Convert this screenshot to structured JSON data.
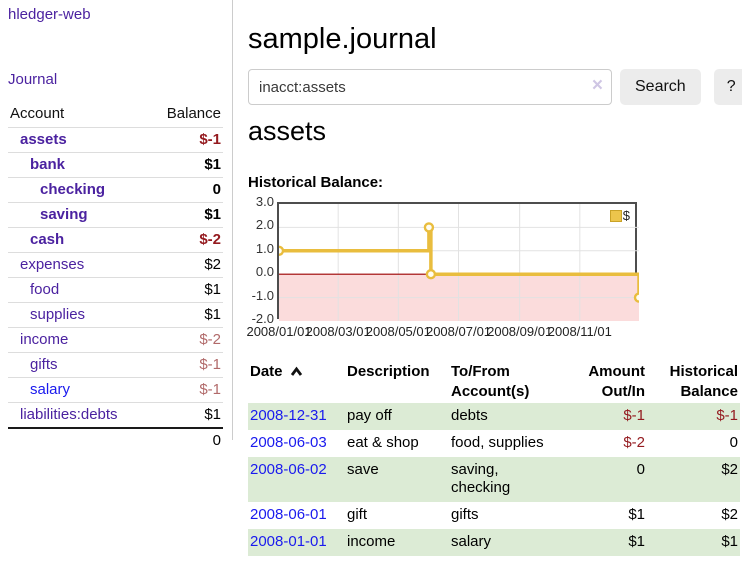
{
  "app": {
    "name": "hledger-web"
  },
  "sidebar": {
    "nav": {
      "journal_label": "Journal"
    },
    "accounts": {
      "col_account": "Account",
      "col_balance": "Balance",
      "rows": [
        {
          "name": "assets",
          "indent": 1,
          "bold": true,
          "link_color": "purple",
          "balance": "$-1",
          "balance_class": "neg-strong"
        },
        {
          "name": "bank",
          "indent": 2,
          "bold": true,
          "link_color": "purple",
          "balance": "$1",
          "balance_class": "pos"
        },
        {
          "name": "checking",
          "indent": 3,
          "bold": true,
          "link_color": "purple",
          "balance": "0",
          "balance_class": "pos"
        },
        {
          "name": "saving",
          "indent": 3,
          "bold": true,
          "link_color": "purple",
          "balance": "$1",
          "balance_class": "pos"
        },
        {
          "name": "cash",
          "indent": 2,
          "bold": true,
          "link_color": "purple",
          "balance": "$-2",
          "balance_class": "neg-strong"
        },
        {
          "name": "expenses",
          "indent": 1,
          "bold": false,
          "link_color": "purple",
          "balance": "$2",
          "balance_class": "pos"
        },
        {
          "name": "food",
          "indent": 2,
          "bold": false,
          "link_color": "purple",
          "balance": "$1",
          "balance_class": "pos"
        },
        {
          "name": "supplies",
          "indent": 2,
          "bold": false,
          "link_color": "purple",
          "balance": "$1",
          "balance_class": "pos"
        },
        {
          "name": "income",
          "indent": 1,
          "bold": false,
          "link_color": "purple",
          "balance": "$-2",
          "balance_class": "neg-soft"
        },
        {
          "name": "gifts",
          "indent": 2,
          "bold": false,
          "link_color": "purple",
          "balance": "$-1",
          "balance_class": "neg-soft"
        },
        {
          "name": "salary",
          "indent": 2,
          "bold": false,
          "link_color": "blue",
          "balance": "$-1",
          "balance_class": "neg-soft"
        },
        {
          "name": "liabilities:debts",
          "indent": 1,
          "bold": false,
          "link_color": "purple",
          "balance": "$1",
          "balance_class": "pos"
        }
      ],
      "total": "0"
    }
  },
  "main": {
    "title": "sample.journal",
    "search": {
      "value": "inacct:assets",
      "clear_icon": "×",
      "button_label": "Search",
      "help_label": "?"
    },
    "account_heading": "assets",
    "chart_title": "Historical Balance:",
    "chart_data": {
      "type": "line",
      "step": true,
      "legend": [
        {
          "label": "$",
          "color": "#ecc54c"
        }
      ],
      "legend_position": "top-right",
      "grid": true,
      "ylim": [
        -2,
        3
      ],
      "y_ticks": [
        3.0,
        2.0,
        1.0,
        0.0,
        -1.0,
        -2.0
      ],
      "x_domain_days": [
        0,
        365
      ],
      "x_ticks": [
        {
          "day": 0,
          "label": "2008/01/01"
        },
        {
          "day": 60,
          "label": "2008/03/01"
        },
        {
          "day": 121,
          "label": "2008/05/01"
        },
        {
          "day": 182,
          "label": "2008/07/01"
        },
        {
          "day": 244,
          "label": "2008/09/01"
        },
        {
          "day": 305,
          "label": "2008/11/01"
        }
      ],
      "points": [
        {
          "date": "2008-01-01",
          "day": 0,
          "value": 1
        },
        {
          "date": "2008-06-01",
          "day": 152,
          "value": 2
        },
        {
          "date": "2008-06-03",
          "day": 154,
          "value": 0
        },
        {
          "date": "2008-12-31",
          "day": 365,
          "value": -1
        }
      ],
      "colors": {
        "line": "#e9bd3e",
        "marker_fill": "#fffdf2",
        "negative_area": "#fbdcdc",
        "zero_line": "#9b0000",
        "grid": "#e2e2e2",
        "border": "#4d4d4d"
      }
    },
    "register": {
      "headers": {
        "date": "Date",
        "description": "Description",
        "accounts": "To/From Account(s)",
        "amount": "Amount Out/In",
        "balance": "Historical Balance"
      },
      "rows": [
        {
          "date": "2008-12-31",
          "description": "pay off",
          "accounts": "debts",
          "amount": "$-1",
          "amount_class": "neg-strong",
          "balance": "$-1",
          "balance_class": "neg-strong"
        },
        {
          "date": "2008-06-03",
          "description": "eat & shop",
          "accounts": "food, supplies",
          "amount": "$-2",
          "amount_class": "neg-strong",
          "balance": "0",
          "balance_class": "pos"
        },
        {
          "date": "2008-06-02",
          "description": "save",
          "accounts": "saving, checking",
          "amount": "0",
          "amount_class": "pos",
          "balance": "$2",
          "balance_class": "pos"
        },
        {
          "date": "2008-06-01",
          "description": "gift",
          "accounts": "gifts",
          "amount": "$1",
          "amount_class": "pos",
          "balance": "$2",
          "balance_class": "pos"
        },
        {
          "date": "2008-01-01",
          "description": "income",
          "accounts": "salary",
          "amount": "$1",
          "amount_class": "pos",
          "balance": "$1",
          "balance_class": "pos"
        }
      ]
    }
  },
  "colors": {
    "link_purple": "#4b22a0",
    "link_blue": "#1a1aee",
    "negative_strong": "#941a1f",
    "negative_soft": "#b16a6a",
    "row_stripe_green": "#dcebd5",
    "button_gray": "#ececec"
  }
}
